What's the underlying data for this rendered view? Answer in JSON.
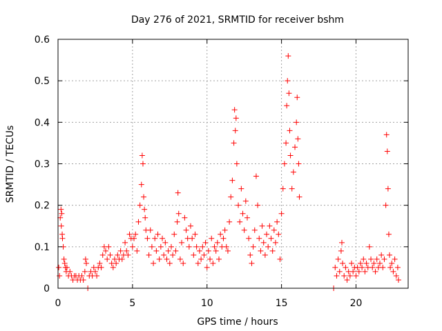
{
  "chart_data": {
    "type": "scatter",
    "title": "Day 276 of 2021, SRMTID for receiver bshm",
    "xlabel": "GPS time / hours",
    "ylabel": "SRMTID / TECUs",
    "xlim": [
      0,
      23.5
    ],
    "ylim": [
      0,
      0.6
    ],
    "xticks": [
      0,
      5,
      10,
      15,
      20
    ],
    "yticks": [
      0,
      0.1,
      0.2,
      0.3,
      0.4,
      0.5,
      0.6
    ],
    "xtick_labels": [
      "0",
      "5",
      "10",
      "15",
      "20"
    ],
    "ytick_labels": [
      "0",
      "0.1",
      "0.2",
      "0.3",
      "0.4",
      "0.5",
      "0.6"
    ],
    "grid": true,
    "marker": "plus",
    "marker_color": "#ff0000",
    "series": [
      {
        "name": "SRMTID",
        "points": [
          [
            0.05,
            0.05
          ],
          [
            0.1,
            0.03
          ],
          [
            0.15,
            0.17
          ],
          [
            0.2,
            0.19
          ],
          [
            0.22,
            0.15
          ],
          [
            0.25,
            0.18
          ],
          [
            0.28,
            0.13
          ],
          [
            0.3,
            0.12
          ],
          [
            0.35,
            0.1
          ],
          [
            0.4,
            0.07
          ],
          [
            0.45,
            0.06
          ],
          [
            0.5,
            0.05
          ],
          [
            0.55,
            0.04
          ],
          [
            0.6,
            0.05
          ],
          [
            0.7,
            0.03
          ],
          [
            0.8,
            0.04
          ],
          [
            0.9,
            0.03
          ],
          [
            1.0,
            0.02
          ],
          [
            1.1,
            0.03
          ],
          [
            1.2,
            0.03
          ],
          [
            1.3,
            0.02
          ],
          [
            1.4,
            0.03
          ],
          [
            1.5,
            0.02
          ],
          [
            1.6,
            0.03
          ],
          [
            1.7,
            0.02
          ],
          [
            1.8,
            0.04
          ],
          [
            1.85,
            0.07
          ],
          [
            1.9,
            0.06
          ],
          [
            2.0,
            0.0
          ],
          [
            2.1,
            0.03
          ],
          [
            2.2,
            0.04
          ],
          [
            2.3,
            0.03
          ],
          [
            2.4,
            0.05
          ],
          [
            2.5,
            0.04
          ],
          [
            2.6,
            0.03
          ],
          [
            2.7,
            0.05
          ],
          [
            2.8,
            0.06
          ],
          [
            2.9,
            0.05
          ],
          [
            3.0,
            0.08
          ],
          [
            3.1,
            0.1
          ],
          [
            3.2,
            0.09
          ],
          [
            3.3,
            0.07
          ],
          [
            3.4,
            0.1
          ],
          [
            3.5,
            0.08
          ],
          [
            3.6,
            0.06
          ],
          [
            3.7,
            0.05
          ],
          [
            3.8,
            0.07
          ],
          [
            3.9,
            0.06
          ],
          [
            4.0,
            0.08
          ],
          [
            4.1,
            0.07
          ],
          [
            4.2,
            0.09
          ],
          [
            4.3,
            0.07
          ],
          [
            4.4,
            0.08
          ],
          [
            4.5,
            0.11
          ],
          [
            4.6,
            0.09
          ],
          [
            4.7,
            0.08
          ],
          [
            4.8,
            0.13
          ],
          [
            4.9,
            0.12
          ],
          [
            5.0,
            0.1
          ],
          [
            5.1,
            0.12
          ],
          [
            5.2,
            0.13
          ],
          [
            5.3,
            0.09
          ],
          [
            5.4,
            0.16
          ],
          [
            5.5,
            0.2
          ],
          [
            5.6,
            0.25
          ],
          [
            5.65,
            0.32
          ],
          [
            5.7,
            0.3
          ],
          [
            5.75,
            0.22
          ],
          [
            5.8,
            0.19
          ],
          [
            5.85,
            0.17
          ],
          [
            5.9,
            0.14
          ],
          [
            6.0,
            0.12
          ],
          [
            6.1,
            0.08
          ],
          [
            6.2,
            0.14
          ],
          [
            6.3,
            0.1
          ],
          [
            6.4,
            0.06
          ],
          [
            6.5,
            0.12
          ],
          [
            6.6,
            0.09
          ],
          [
            6.7,
            0.13
          ],
          [
            6.8,
            0.07
          ],
          [
            6.9,
            0.1
          ],
          [
            7.0,
            0.12
          ],
          [
            7.1,
            0.08
          ],
          [
            7.2,
            0.11
          ],
          [
            7.3,
            0.07
          ],
          [
            7.4,
            0.09
          ],
          [
            7.5,
            0.06
          ],
          [
            7.6,
            0.1
          ],
          [
            7.7,
            0.08
          ],
          [
            7.8,
            0.13
          ],
          [
            7.9,
            0.09
          ],
          [
            8.0,
            0.16
          ],
          [
            8.05,
            0.23
          ],
          [
            8.1,
            0.18
          ],
          [
            8.2,
            0.07
          ],
          [
            8.3,
            0.11
          ],
          [
            8.4,
            0.06
          ],
          [
            8.5,
            0.17
          ],
          [
            8.6,
            0.14
          ],
          [
            8.7,
            0.12
          ],
          [
            8.8,
            0.1
          ],
          [
            8.9,
            0.15
          ],
          [
            9.0,
            0.12
          ],
          [
            9.1,
            0.08
          ],
          [
            9.2,
            0.13
          ],
          [
            9.3,
            0.1
          ],
          [
            9.4,
            0.06
          ],
          [
            9.5,
            0.09
          ],
          [
            9.6,
            0.07
          ],
          [
            9.7,
            0.1
          ],
          [
            9.8,
            0.08
          ],
          [
            9.9,
            0.11
          ],
          [
            10.0,
            0.05
          ],
          [
            10.1,
            0.09
          ],
          [
            10.2,
            0.07
          ],
          [
            10.3,
            0.12
          ],
          [
            10.4,
            0.06
          ],
          [
            10.5,
            0.1
          ],
          [
            10.6,
            0.09
          ],
          [
            10.7,
            0.11
          ],
          [
            10.8,
            0.07
          ],
          [
            10.9,
            0.13
          ],
          [
            11.0,
            0.1
          ],
          [
            11.1,
            0.12
          ],
          [
            11.2,
            0.14
          ],
          [
            11.3,
            0.1
          ],
          [
            11.4,
            0.09
          ],
          [
            11.5,
            0.16
          ],
          [
            11.6,
            0.22
          ],
          [
            11.7,
            0.26
          ],
          [
            11.8,
            0.35
          ],
          [
            11.85,
            0.43
          ],
          [
            11.9,
            0.38
          ],
          [
            11.95,
            0.41
          ],
          [
            12.0,
            0.3
          ],
          [
            12.1,
            0.2
          ],
          [
            12.2,
            0.16
          ],
          [
            12.3,
            0.24
          ],
          [
            12.4,
            0.18
          ],
          [
            12.5,
            0.14
          ],
          [
            12.6,
            0.21
          ],
          [
            12.7,
            0.17
          ],
          [
            12.8,
            0.12
          ],
          [
            12.9,
            0.08
          ],
          [
            13.0,
            0.06
          ],
          [
            13.1,
            0.1
          ],
          [
            13.2,
            0.14
          ],
          [
            13.3,
            0.27
          ],
          [
            13.4,
            0.2
          ],
          [
            13.5,
            0.12
          ],
          [
            13.6,
            0.09
          ],
          [
            13.7,
            0.15
          ],
          [
            13.8,
            0.11
          ],
          [
            13.9,
            0.08
          ],
          [
            14.0,
            0.13
          ],
          [
            14.1,
            0.1
          ],
          [
            14.2,
            0.15
          ],
          [
            14.3,
            0.12
          ],
          [
            14.4,
            0.09
          ],
          [
            14.5,
            0.14
          ],
          [
            14.6,
            0.11
          ],
          [
            14.7,
            0.16
          ],
          [
            14.8,
            0.13
          ],
          [
            14.9,
            0.07
          ],
          [
            15.0,
            0.18
          ],
          [
            15.1,
            0.24
          ],
          [
            15.2,
            0.3
          ],
          [
            15.3,
            0.35
          ],
          [
            15.35,
            0.44
          ],
          [
            15.4,
            0.5
          ],
          [
            15.45,
            0.56
          ],
          [
            15.5,
            0.47
          ],
          [
            15.55,
            0.38
          ],
          [
            15.6,
            0.32
          ],
          [
            15.7,
            0.24
          ],
          [
            15.8,
            0.28
          ],
          [
            15.9,
            0.34
          ],
          [
            16.0,
            0.4
          ],
          [
            16.05,
            0.46
          ],
          [
            16.1,
            0.36
          ],
          [
            16.15,
            0.3
          ],
          [
            16.2,
            0.22
          ],
          [
            18.5,
            0.0
          ],
          [
            18.6,
            0.05
          ],
          [
            18.7,
            0.03
          ],
          [
            18.8,
            0.07
          ],
          [
            18.9,
            0.04
          ],
          [
            19.0,
            0.09
          ],
          [
            19.05,
            0.11
          ],
          [
            19.1,
            0.06
          ],
          [
            19.2,
            0.03
          ],
          [
            19.3,
            0.05
          ],
          [
            19.4,
            0.02
          ],
          [
            19.5,
            0.04
          ],
          [
            19.6,
            0.03
          ],
          [
            19.7,
            0.06
          ],
          [
            19.8,
            0.04
          ],
          [
            19.9,
            0.05
          ],
          [
            20.0,
            0.03
          ],
          [
            20.1,
            0.05
          ],
          [
            20.2,
            0.04
          ],
          [
            20.3,
            0.06
          ],
          [
            20.4,
            0.05
          ],
          [
            20.5,
            0.07
          ],
          [
            20.6,
            0.04
          ],
          [
            20.7,
            0.06
          ],
          [
            20.8,
            0.05
          ],
          [
            20.9,
            0.1
          ],
          [
            21.0,
            0.07
          ],
          [
            21.1,
            0.05
          ],
          [
            21.2,
            0.06
          ],
          [
            21.3,
            0.04
          ],
          [
            21.4,
            0.07
          ],
          [
            21.5,
            0.05
          ],
          [
            21.6,
            0.06
          ],
          [
            21.7,
            0.08
          ],
          [
            21.8,
            0.05
          ],
          [
            21.9,
            0.07
          ],
          [
            22.0,
            0.2
          ],
          [
            22.05,
            0.37
          ],
          [
            22.1,
            0.33
          ],
          [
            22.15,
            0.24
          ],
          [
            22.2,
            0.13
          ],
          [
            22.25,
            0.08
          ],
          [
            22.3,
            0.05
          ],
          [
            22.4,
            0.06
          ],
          [
            22.5,
            0.04
          ],
          [
            22.6,
            0.07
          ],
          [
            22.7,
            0.03
          ],
          [
            22.8,
            0.05
          ],
          [
            22.85,
            0.02
          ]
        ]
      }
    ]
  }
}
